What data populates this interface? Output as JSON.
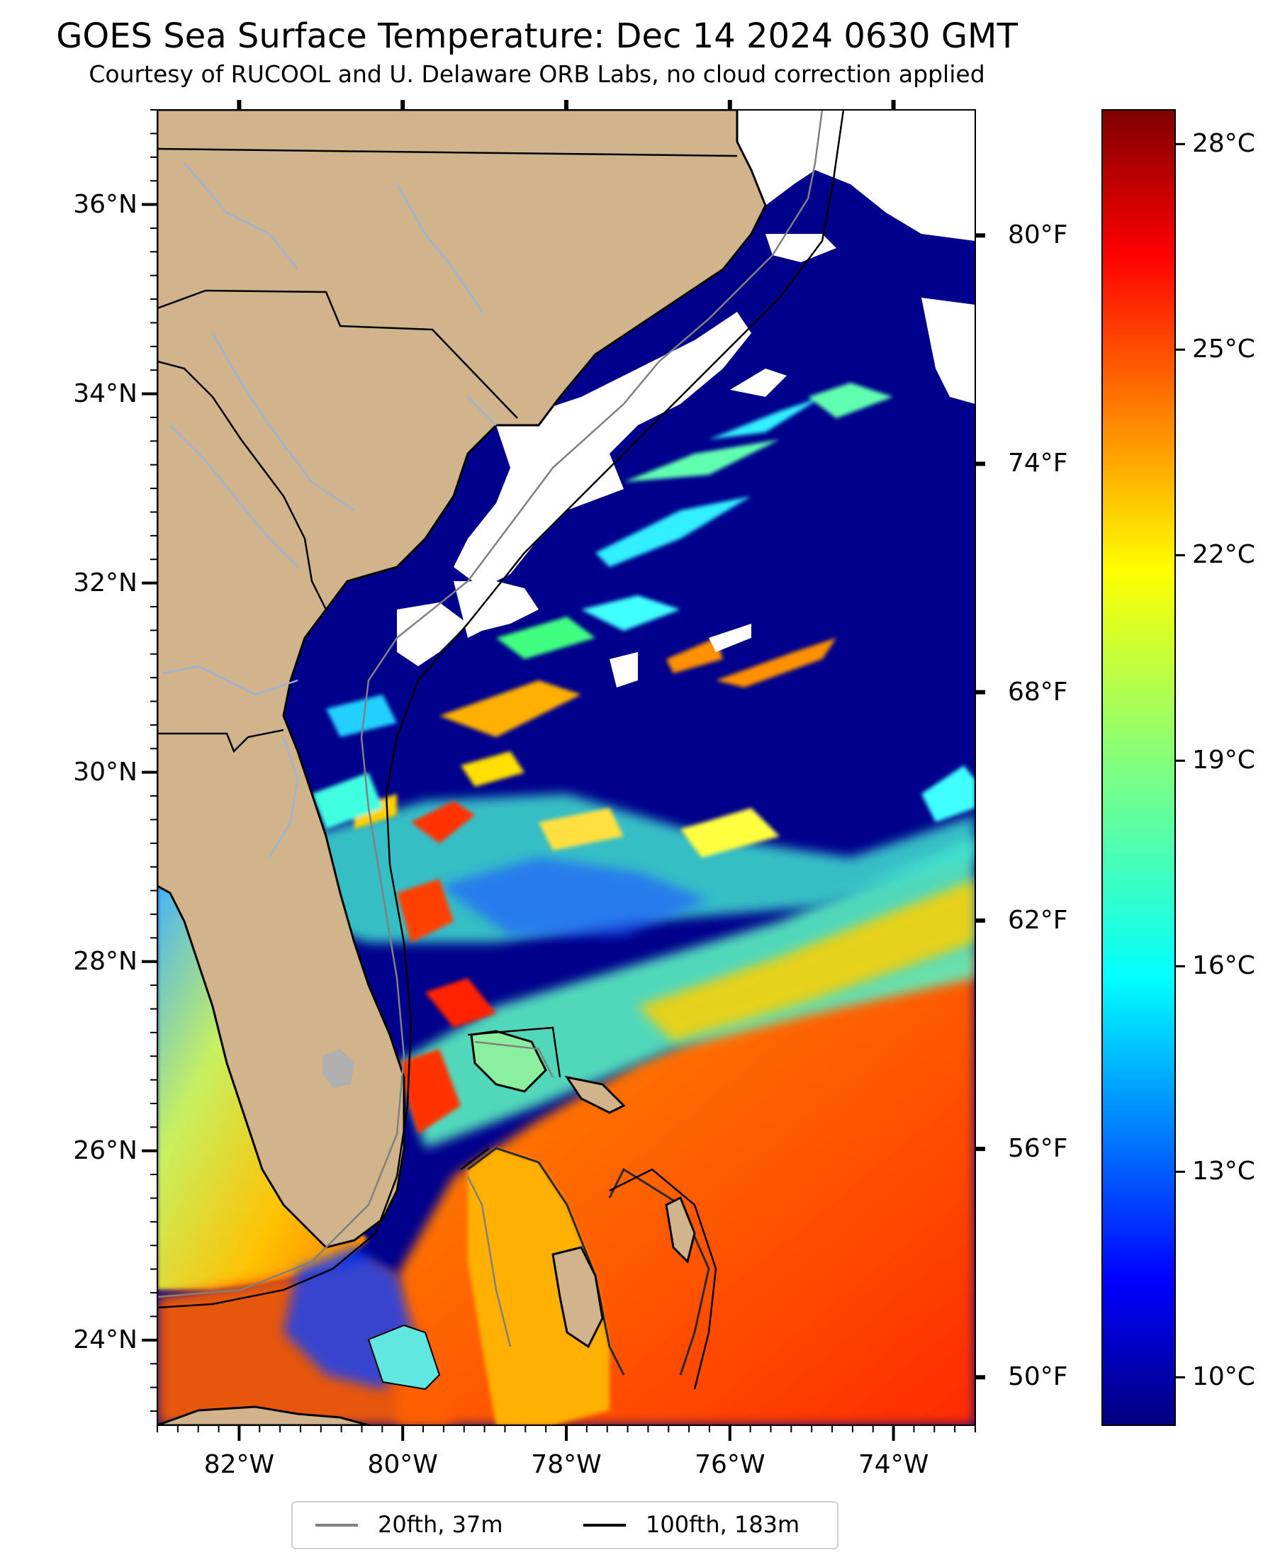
{
  "title": "GOES Sea Surface Temperature: Dec 14 2024 0630 GMT",
  "subtitle": "Courtesy of RUCOOL and U. Delaware ORB Labs, no cloud correction applied",
  "map": {
    "lon_range": [
      -83,
      -73
    ],
    "lat_range": [
      23.1,
      37.0
    ],
    "latitude_ticks": [
      "24°N",
      "26°N",
      "28°N",
      "30°N",
      "32°N",
      "34°N",
      "36°N"
    ],
    "longitude_ticks": [
      "82°W",
      "80°W",
      "78°W",
      "76°W",
      "74°W"
    ],
    "colors": {
      "land": "#d2b48c",
      "coast": "#000000",
      "rivers": "#9db4d6",
      "cloud": "#ffffff",
      "cold_water": "#00008c"
    }
  },
  "colorbar": {
    "colormap": "jet",
    "range_c": [
      9.3,
      28.5
    ],
    "celsius_ticks": [
      "10°C",
      "13°C",
      "16°C",
      "19°C",
      "22°C",
      "25°C",
      "28°C"
    ],
    "fahrenheit_ticks": [
      "50°F",
      "56°F",
      "62°F",
      "68°F",
      "74°F",
      "80°F"
    ]
  },
  "legend": {
    "entries": [
      {
        "label": "20fth, 37m",
        "color": "#808080"
      },
      {
        "label": "100fth, 183m",
        "color": "#000000"
      }
    ]
  }
}
